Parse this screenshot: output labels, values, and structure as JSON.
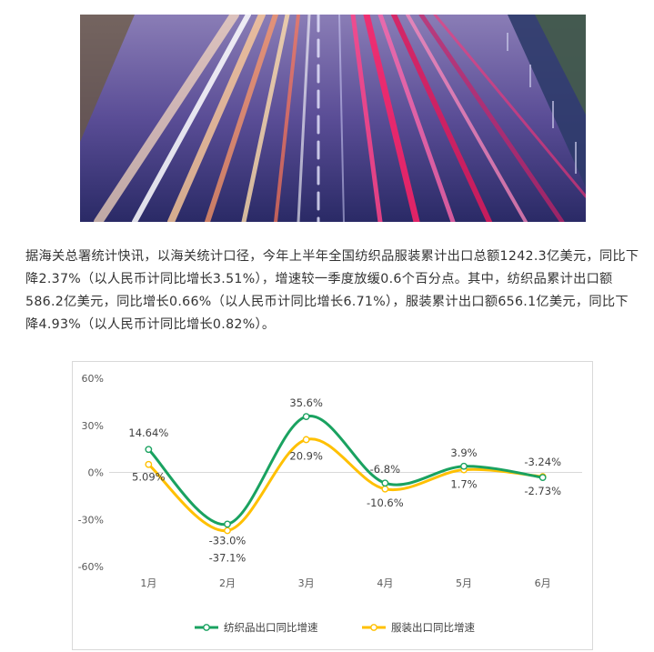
{
  "article": {
    "text": "据海关总署统计快讯，以海关统计口径，今年上半年全国纺织品服装累计出口总额1242.3亿美元，同比下降2.37%（以人民币计同比增长3.51%），增速较一季度放缓0.6个百分点。其中，纺织品累计出口额586.2亿美元，同比增长0.66%（以人民币计同比增长6.71%），服装累计出口额656.1亿美元，同比下降4.93%（以人民币计同比增长0.82%）。"
  },
  "hero": {
    "icon": "highway-light-trails-photo"
  },
  "chart_data": {
    "type": "line",
    "categories": [
      "1月",
      "2月",
      "3月",
      "4月",
      "5月",
      "6月"
    ],
    "ylim": [
      -60,
      60
    ],
    "yticks": [
      60,
      30,
      0,
      -30,
      -60
    ],
    "ytick_labels": [
      "60%",
      "30%",
      "0%",
      "-30%",
      "-60%"
    ],
    "legend_position": "bottom",
    "smooth": true,
    "series": [
      {
        "name": "纺织品出口同比增速",
        "color": "#1aa260",
        "values": [
          14.64,
          -33.0,
          35.6,
          -6.8,
          3.9,
          -3.24
        ],
        "labels": [
          "14.64%",
          "-33.0%",
          "35.6%",
          "-6.8%",
          "3.9%",
          "-3.24%"
        ]
      },
      {
        "name": "服装出口同比增速",
        "color": "#ffc000",
        "values": [
          5.09,
          -37.1,
          20.9,
          -10.6,
          1.7,
          -2.73
        ],
        "labels": [
          "5.09%",
          "-37.1%",
          "20.9%",
          "-10.6%",
          "1.7%",
          "-2.73%"
        ]
      }
    ]
  }
}
